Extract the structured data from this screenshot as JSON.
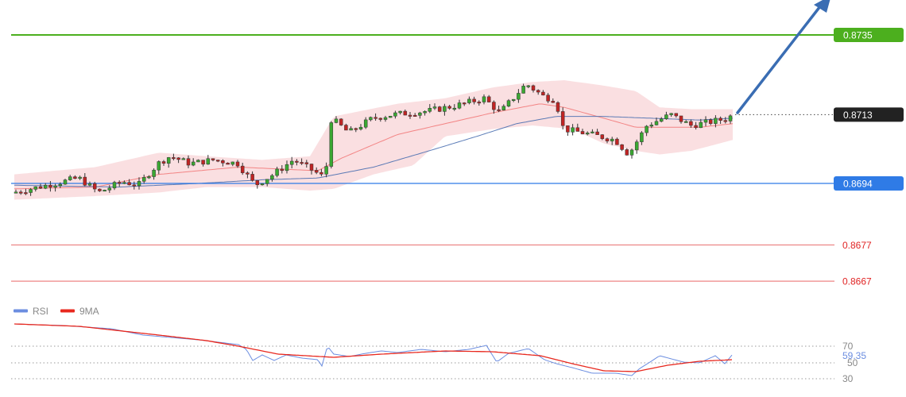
{
  "chart_data": {
    "type": "candlestick",
    "price_axis": {
      "min": 0.866,
      "max": 0.874
    },
    "bollinger_color": "#f4b8bc",
    "ma_fast_color": "#f27a7a",
    "ma_slow_color": "#4a6fb0",
    "levels": [
      {
        "value": 0.8735,
        "label": "0.8735",
        "color": "#4caf1e",
        "style": "resistance"
      },
      {
        "value": 0.8713,
        "label": "0.8713",
        "color": "#222222",
        "style": "current"
      },
      {
        "value": 0.8694,
        "label": "0.8694",
        "color": "#2f7be6",
        "style": "support"
      },
      {
        "value": 0.8677,
        "label": "0.8677",
        "color": "#e02424",
        "style": "support"
      },
      {
        "value": 0.8667,
        "label": "0.8667",
        "color": "#e02424",
        "style": "support"
      }
    ],
    "forecast_arrow": {
      "direction": "up",
      "color": "#3a6db3"
    },
    "rsi": {
      "legend": [
        {
          "name": "RSI",
          "color": "#6b8de0"
        },
        {
          "name": "9MA",
          "color": "#e8281e"
        }
      ],
      "levels": [
        {
          "value": 70,
          "label": "70"
        },
        {
          "value": 50,
          "label": "50"
        },
        {
          "value": 30,
          "label": "30"
        }
      ],
      "current_value": "59.35",
      "current_color": "#6b8de0"
    }
  }
}
